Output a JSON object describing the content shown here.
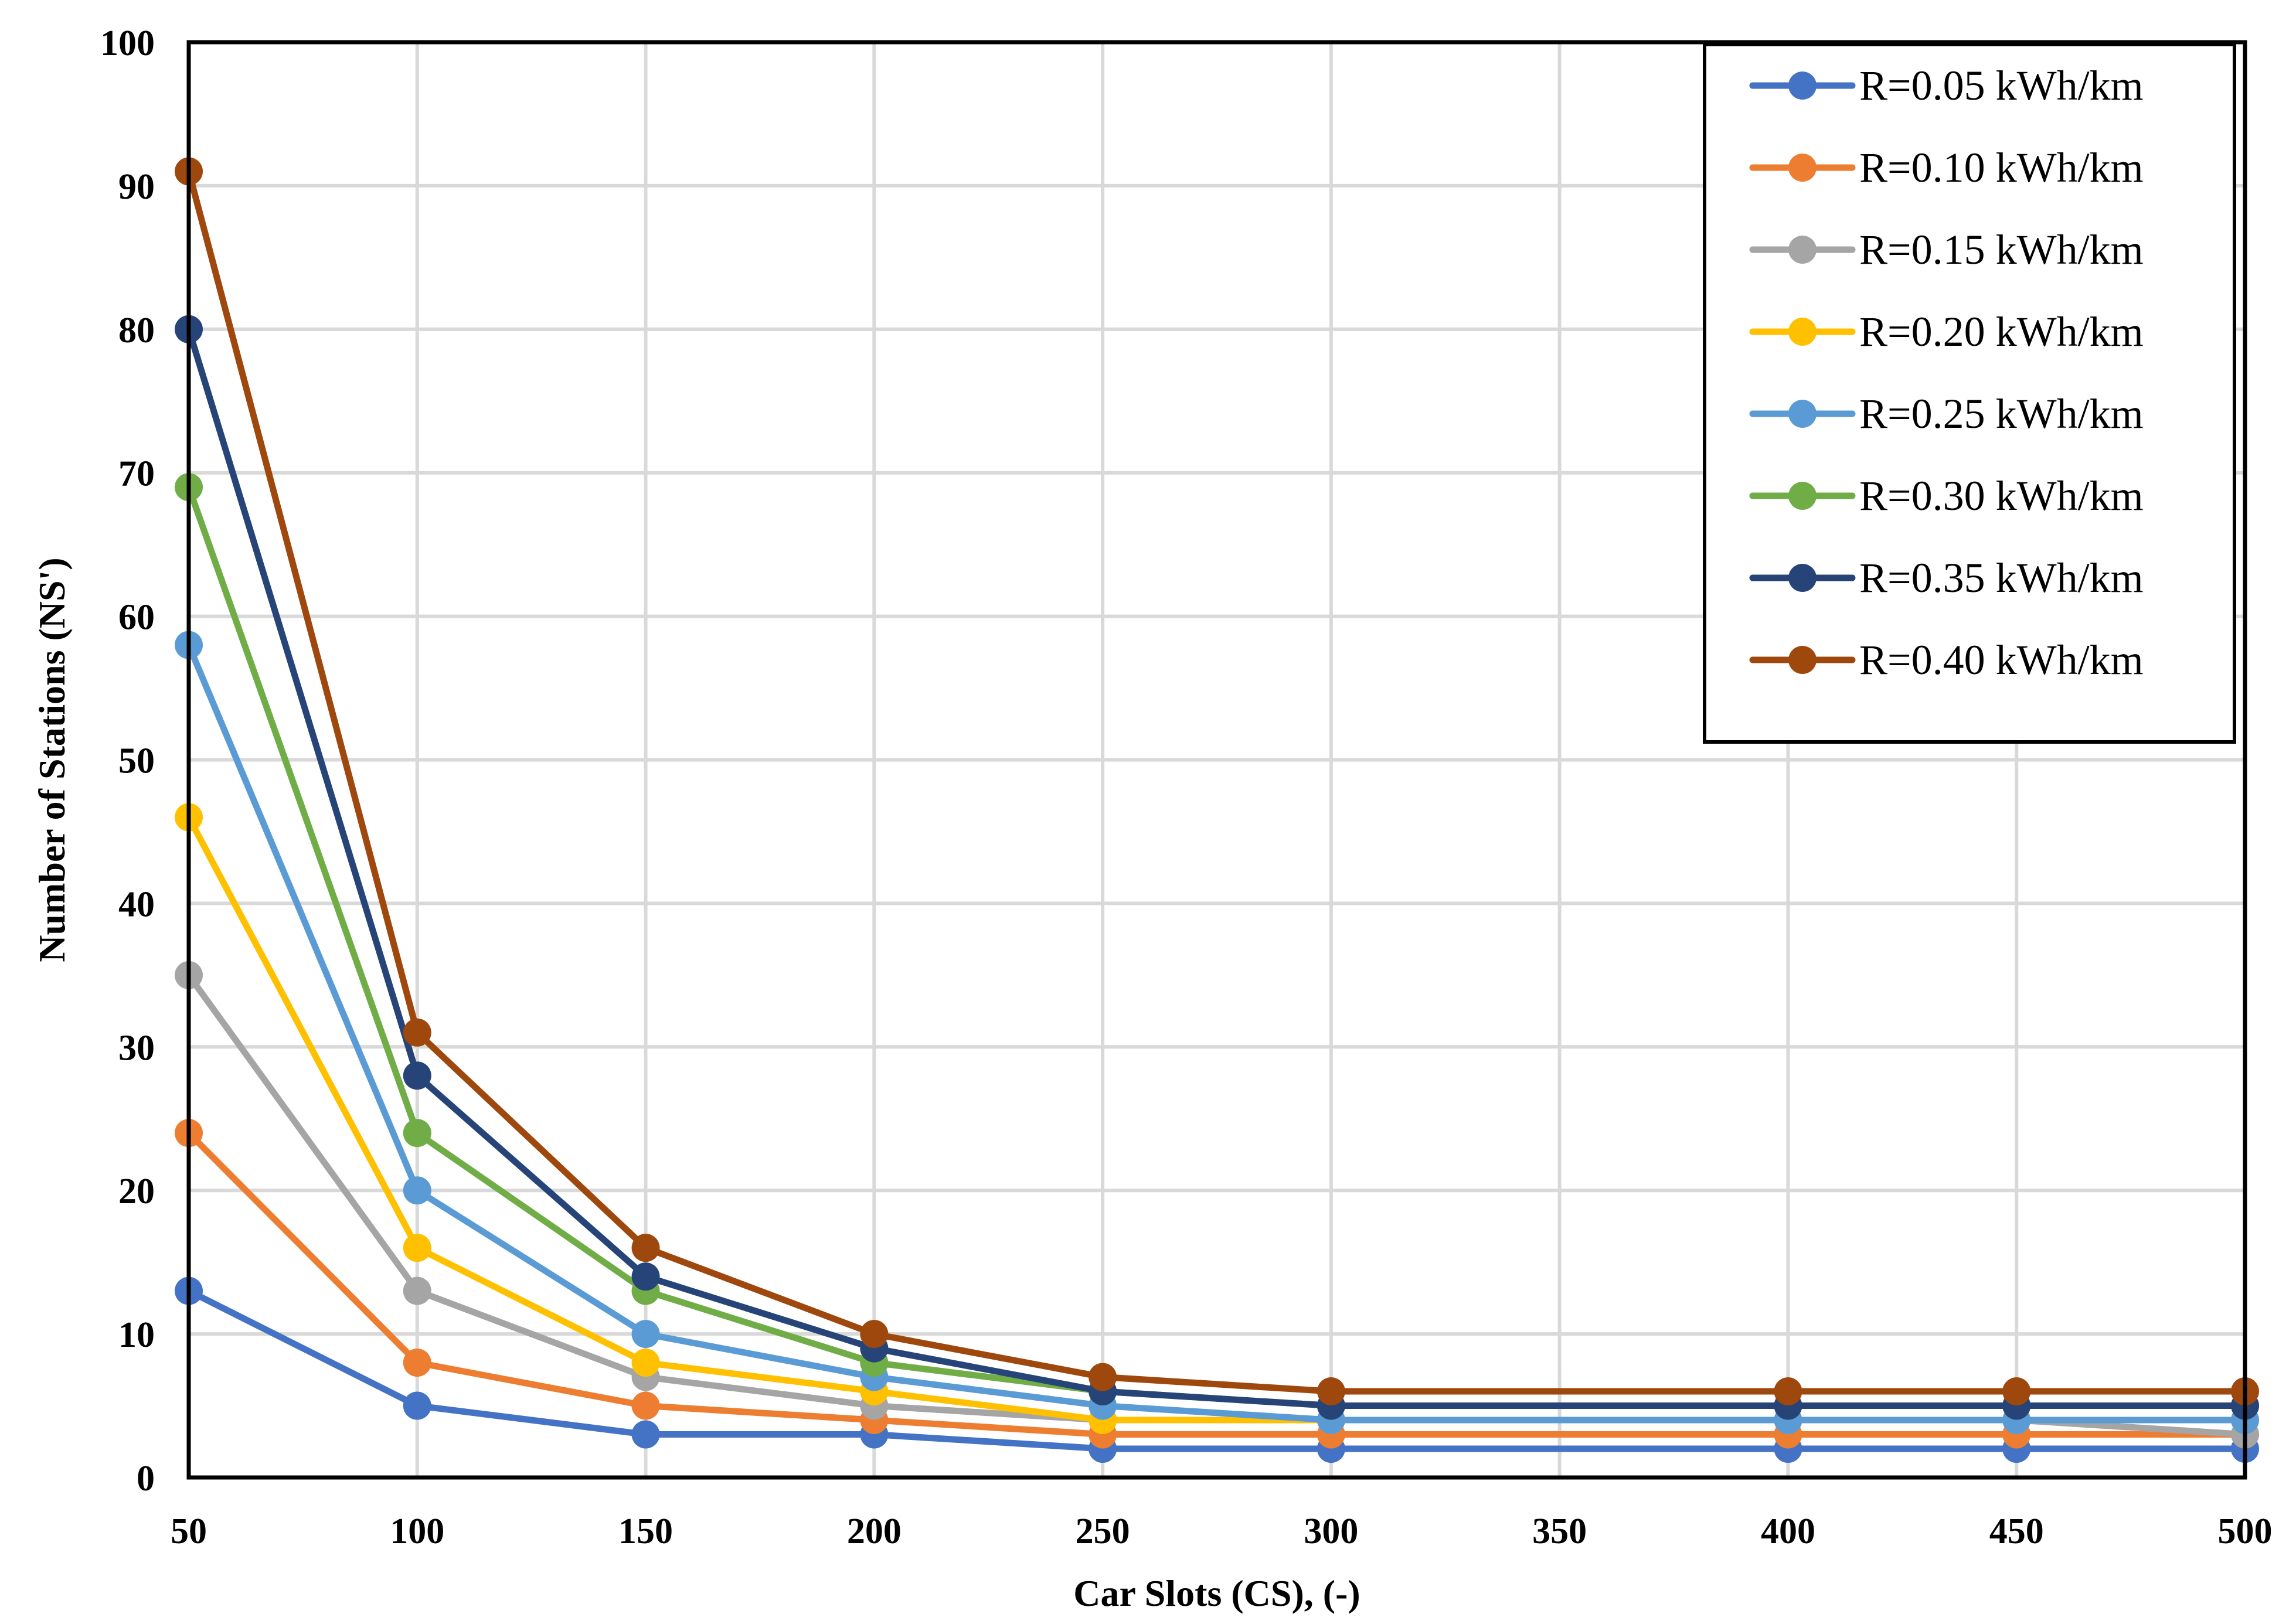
{
  "chart_data": {
    "type": "line",
    "title": "",
    "xlabel": "Car Slots (CS), (-)",
    "ylabel": "Number of Stations (NS')",
    "categories": [
      "50",
      "100",
      "150",
      "200",
      "250",
      "300",
      "350",
      "400",
      "450",
      "500"
    ],
    "yticks": [
      "0",
      "10",
      "20",
      "30",
      "40",
      "50",
      "60",
      "70",
      "80",
      "90",
      "100"
    ],
    "ylim": [
      0,
      100
    ],
    "grid": true,
    "legend_position": "top-right",
    "series": [
      {
        "name": "R=0.05 kWh/km",
        "color": "#4472c4",
        "points": [
          [
            0,
            13
          ],
          [
            1,
            5
          ],
          [
            2,
            3
          ],
          [
            3,
            3
          ],
          [
            4,
            2
          ],
          [
            5,
            2
          ],
          [
            7,
            2
          ],
          [
            8,
            2
          ],
          [
            9,
            2
          ]
        ]
      },
      {
        "name": "R=0.10 kWh/km",
        "color": "#ed7d31",
        "points": [
          [
            0,
            24
          ],
          [
            1,
            8
          ],
          [
            2,
            5
          ],
          [
            3,
            4
          ],
          [
            4,
            3
          ],
          [
            5,
            3
          ],
          [
            7,
            3
          ],
          [
            8,
            3
          ],
          [
            9,
            3
          ]
        ]
      },
      {
        "name": "R=0.15 kWh/km",
        "color": "#a5a5a5",
        "points": [
          [
            0,
            35
          ],
          [
            1,
            13
          ],
          [
            2,
            7
          ],
          [
            3,
            5
          ],
          [
            4,
            4
          ],
          [
            5,
            4
          ],
          [
            7,
            4
          ],
          [
            8,
            4
          ],
          [
            9,
            3
          ]
        ]
      },
      {
        "name": "R=0.20 kWh/km",
        "color": "#ffc000",
        "points": [
          [
            0,
            46
          ],
          [
            1,
            16
          ],
          [
            2,
            8
          ],
          [
            3,
            6
          ],
          [
            4,
            4
          ],
          [
            5,
            4
          ],
          [
            7,
            4
          ],
          [
            8,
            4
          ],
          [
            9,
            4
          ]
        ]
      },
      {
        "name": "R=0.25 kWh/km",
        "color": "#5b9bd5",
        "points": [
          [
            0,
            58
          ],
          [
            1,
            20
          ],
          [
            2,
            10
          ],
          [
            3,
            7
          ],
          [
            4,
            5
          ],
          [
            5,
            4
          ],
          [
            7,
            4
          ],
          [
            8,
            4
          ],
          [
            9,
            4
          ]
        ]
      },
      {
        "name": "R=0.30 kWh/km",
        "color": "#70ad47",
        "points": [
          [
            0,
            69
          ],
          [
            1,
            24
          ],
          [
            2,
            13
          ],
          [
            3,
            8
          ],
          [
            4,
            6
          ],
          [
            5,
            5
          ],
          [
            7,
            5
          ],
          [
            8,
            5
          ],
          [
            9,
            5
          ]
        ]
      },
      {
        "name": "R=0.35 kWh/km",
        "color": "#264478",
        "points": [
          [
            0,
            80
          ],
          [
            1,
            28
          ],
          [
            2,
            14
          ],
          [
            3,
            9
          ],
          [
            4,
            6
          ],
          [
            5,
            5
          ],
          [
            7,
            5
          ],
          [
            8,
            5
          ],
          [
            9,
            5
          ]
        ]
      },
      {
        "name": "R=0.40 kWh/km",
        "color": "#9e480e",
        "points": [
          [
            0,
            91
          ],
          [
            1,
            31
          ],
          [
            2,
            16
          ],
          [
            3,
            10
          ],
          [
            4,
            7
          ],
          [
            5,
            6
          ],
          [
            7,
            6
          ],
          [
            8,
            6
          ],
          [
            9,
            6
          ]
        ]
      }
    ]
  }
}
